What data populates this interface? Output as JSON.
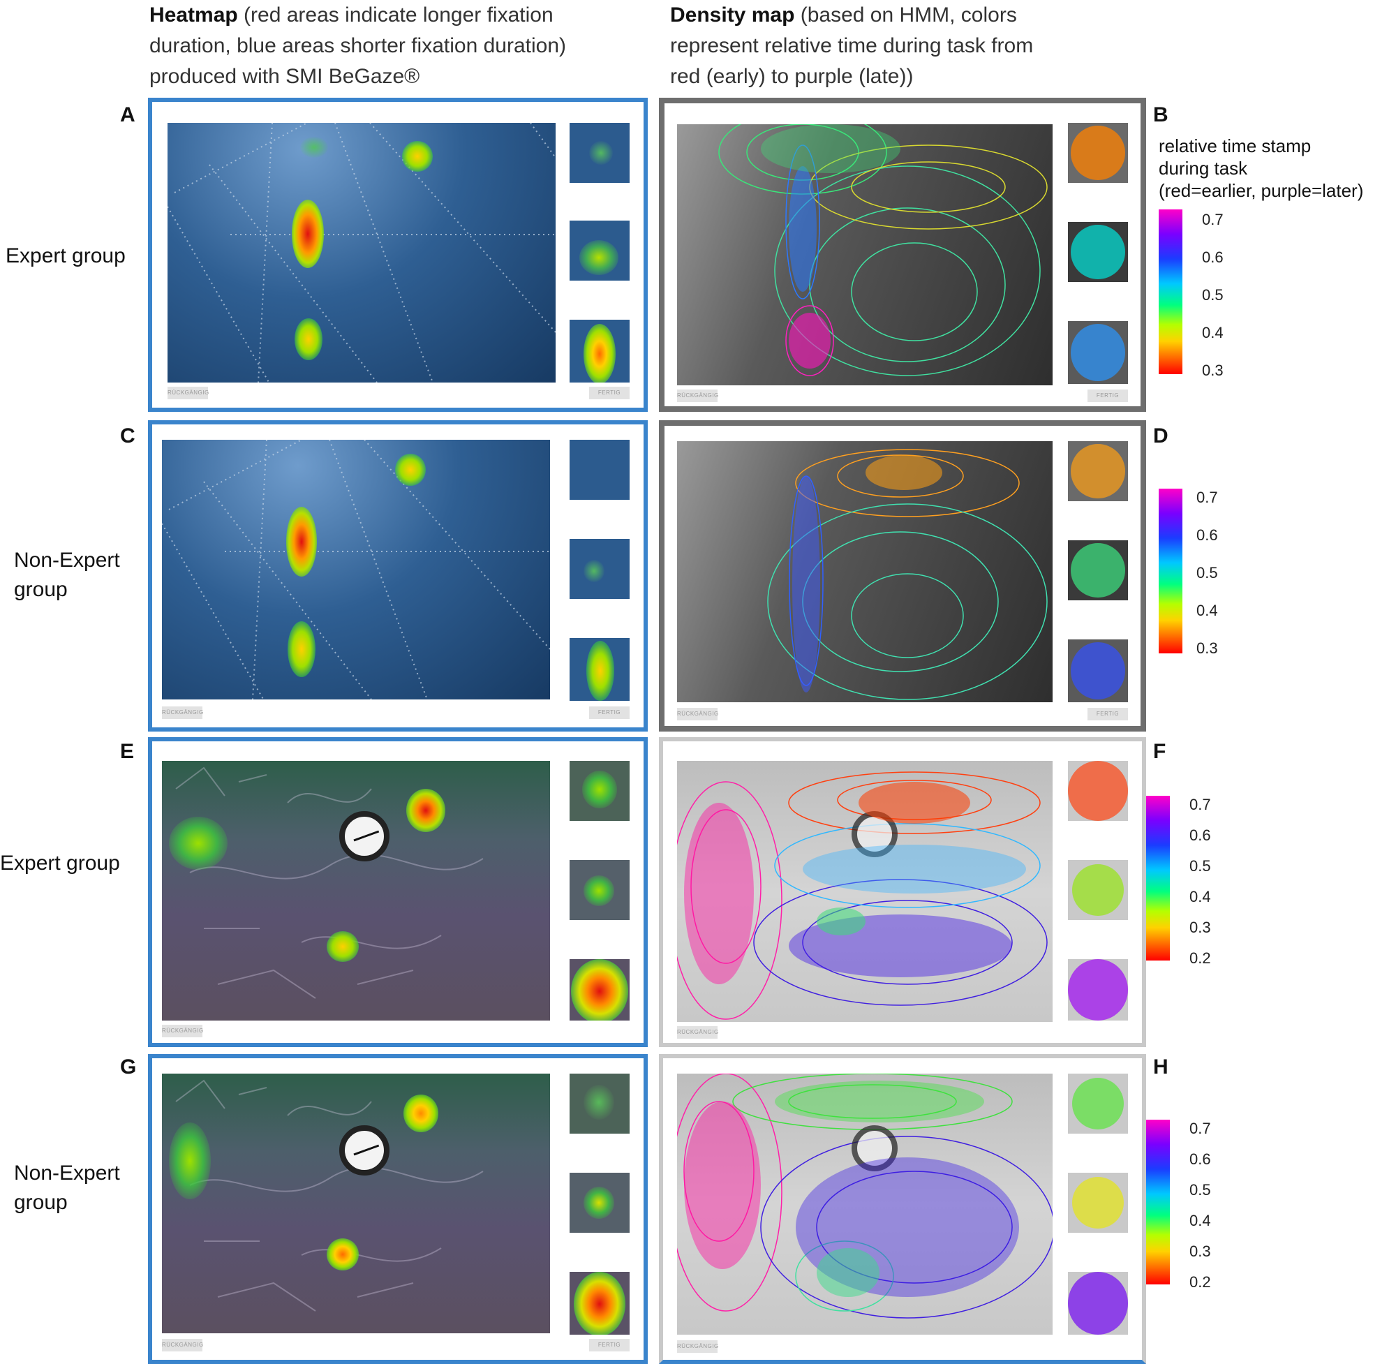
{
  "header": {
    "left_bold": "Heatmap",
    "left_rest": " (red areas indicate longer fixation duration, blue areas shorter fixation duration) produced with SMI BeGaze®",
    "right_bold": "Density map",
    "right_rest": " (based on HMM, colors represent relative time during task from red (early) to purple (late))"
  },
  "panels": {
    "A": "A",
    "B": "B",
    "C": "C",
    "D": "D",
    "E": "E",
    "F": "F",
    "G": "G",
    "H": "H"
  },
  "rows": {
    "row1": "Expert group",
    "row2_line1": "Non-Expert",
    "row2_line2": "group",
    "row3": "Expert group",
    "row4_line1": "Non-Expert",
    "row4_line2": "group"
  },
  "legend": {
    "title_line1": "relative time stamp",
    "title_line2": "during task",
    "title_line3": "(red=earlier, purple=later)",
    "ticks_B": [
      "0.7",
      "0.6",
      "0.5",
      "0.4",
      "0.3"
    ],
    "ticks_D": [
      "0.7",
      "0.6",
      "0.5",
      "0.4",
      "0.3"
    ],
    "ticks_F": [
      "0.7",
      "0.6",
      "0.5",
      "0.4",
      "0.3",
      "0.2"
    ],
    "ticks_H": [
      "0.7",
      "0.6",
      "0.5",
      "0.4",
      "0.3",
      "0.2"
    ]
  },
  "buttons": {
    "undo": "RÜCKGÄNGIG",
    "done": "FERTIG"
  },
  "colors": {
    "heat_frame": "#3a84cc",
    "density_frame_dark": "#6e6e6e",
    "density_frame_light": "#c9c9c9"
  }
}
